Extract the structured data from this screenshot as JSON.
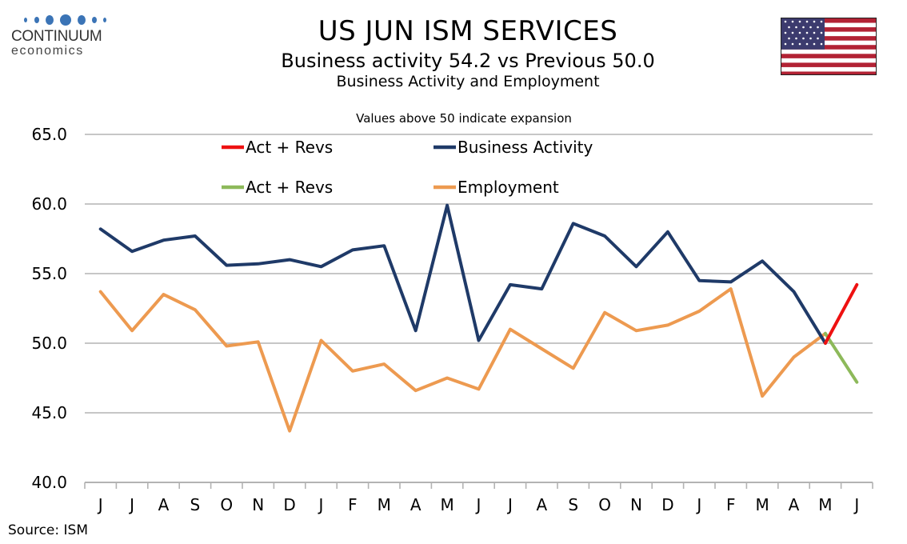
{
  "brand": {
    "name": "CONTINUUM",
    "sub": "economics"
  },
  "header": {
    "title": "US JUN ISM SERVICES",
    "subtitle": "Business activity 54.2 vs Previous 50.0",
    "subtitle2": "Business Activity and Employment"
  },
  "flag_icon": "us-flag-icon",
  "source": "Source: ISM",
  "chart_data": {
    "type": "line",
    "annotation": "Values above 50 indicate expansion",
    "categories": [
      "J",
      "J",
      "A",
      "S",
      "O",
      "N",
      "D",
      "J",
      "F",
      "M",
      "A",
      "M",
      "J",
      "J",
      "A",
      "S",
      "O",
      "N",
      "D",
      "J",
      "F",
      "M",
      "A",
      "M",
      "J"
    ],
    "ylim": [
      40,
      65
    ],
    "yticks": [
      "40.0",
      "45.0",
      "50.0",
      "55.0",
      "60.0",
      "65.0"
    ],
    "grid": "horizontal",
    "legend_placement": "top",
    "series": [
      {
        "name": "Business Activity",
        "color": "#1f3a68",
        "values": [
          58.2,
          56.6,
          57.4,
          57.7,
          55.6,
          55.7,
          56.0,
          55.5,
          56.7,
          57.0,
          50.9,
          59.9,
          50.2,
          54.2,
          53.9,
          58.6,
          57.7,
          55.5,
          58.0,
          54.5,
          54.4,
          55.9,
          53.7,
          50.0,
          null
        ]
      },
      {
        "name": "Employment",
        "color": "#ed9a50",
        "values": [
          53.7,
          50.9,
          53.5,
          52.4,
          49.8,
          50.1,
          43.7,
          50.2,
          48.0,
          48.5,
          46.6,
          47.5,
          46.7,
          51.0,
          49.6,
          48.2,
          52.2,
          50.9,
          51.3,
          52.3,
          53.9,
          46.2,
          49.0,
          50.7,
          null
        ]
      },
      {
        "name": "Act + Revs",
        "color": "#ee1111",
        "values": [
          null,
          null,
          null,
          null,
          null,
          null,
          null,
          null,
          null,
          null,
          null,
          null,
          null,
          null,
          null,
          null,
          null,
          null,
          null,
          null,
          null,
          null,
          null,
          50.0,
          54.2
        ]
      },
      {
        "name": "Act + Revs",
        "color": "#8db95a",
        "values": [
          null,
          null,
          null,
          null,
          null,
          null,
          null,
          null,
          null,
          null,
          null,
          null,
          null,
          null,
          null,
          null,
          null,
          null,
          null,
          null,
          null,
          null,
          null,
          50.7,
          47.2
        ]
      }
    ],
    "legend": [
      {
        "series": 2,
        "label": "Act + Revs"
      },
      {
        "series": 0,
        "label": "Business Activity"
      },
      {
        "series": 3,
        "label": "Act + Revs"
      },
      {
        "series": 1,
        "label": "Employment"
      }
    ]
  }
}
